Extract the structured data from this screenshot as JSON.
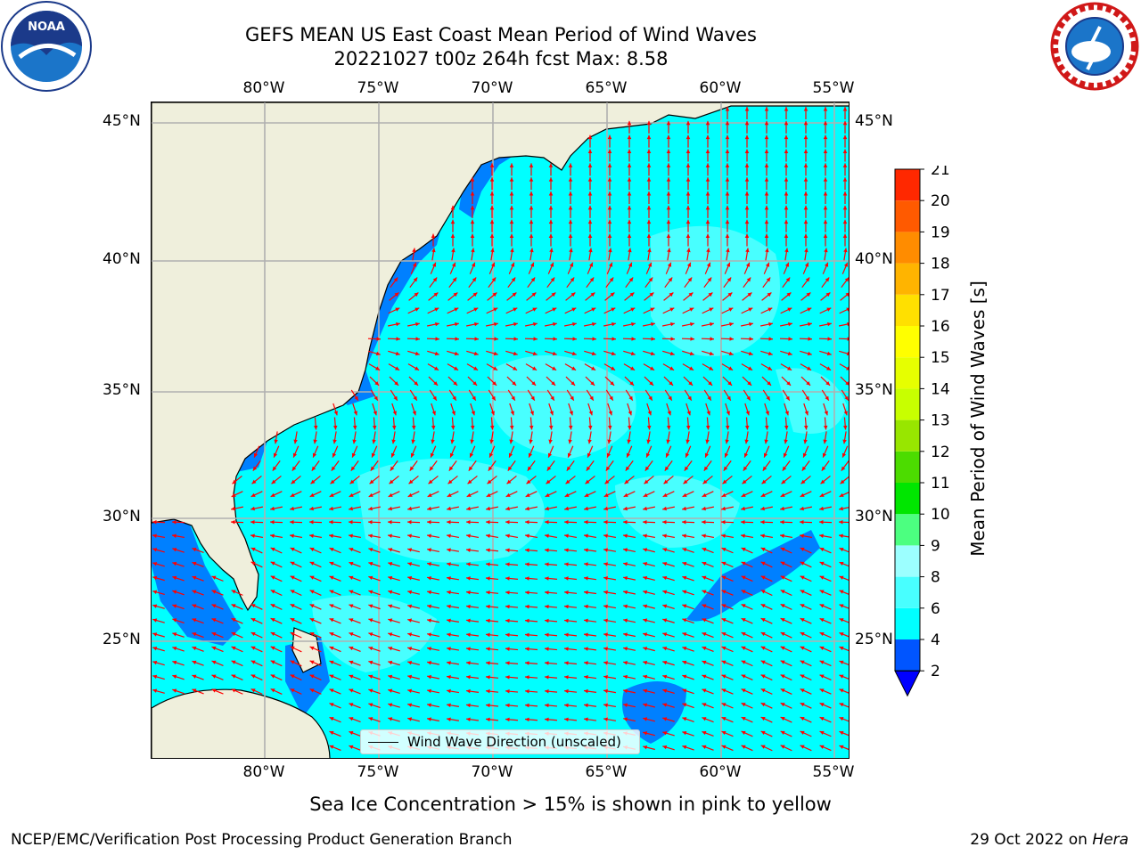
{
  "title_line1": "GEFS MEAN US East Coast Mean Period of Wind Waves",
  "title_line2": "20221027 t00z 264h fcst   Max: 8.58",
  "lon_labels": [
    "80°W",
    "75°W",
    "70°W",
    "65°W",
    "60°W",
    "55°W"
  ],
  "lat_labels": [
    "45°N",
    "40°N",
    "35°N",
    "30°N",
    "25°N"
  ],
  "legend_label": "Wind Wave Direction (unscaled)",
  "colorbar": {
    "label": "Mean Period of Wind Waves [s]",
    "ticks": [
      "2",
      "4",
      "6",
      "8",
      "9",
      "10",
      "11",
      "12",
      "13",
      "14",
      "15",
      "16",
      "17",
      "18",
      "19",
      "20",
      "21"
    ],
    "colors": [
      "#0055ff",
      "#00ffff",
      "#48ffff",
      "#9cffff",
      "#4cff80",
      "#00e600",
      "#4cdc00",
      "#98e600",
      "#c8ff00",
      "#e6ff00",
      "#ffff00",
      "#ffe000",
      "#ffb400",
      "#ff8c00",
      "#ff5a00",
      "#ff2800"
    ],
    "under_color": "#0000ff"
  },
  "footer_note": "Sea Ice Concentration > 15% is shown in pink to yellow",
  "credit": "NCEP/EMC/Verification Post Processing Product Generation Branch",
  "date_text": "29 Oct 2022 on",
  "date_host": "Hera",
  "colors": {
    "land": "#efefdc",
    "ocean_6": "#00ffff",
    "ocean_8": "#48ffff",
    "ocean_4": "#0080ff",
    "arrow": "#ff0000",
    "grid": "#b0b0b0"
  },
  "logos": [
    "noaa-logo",
    "nws-logo"
  ]
}
